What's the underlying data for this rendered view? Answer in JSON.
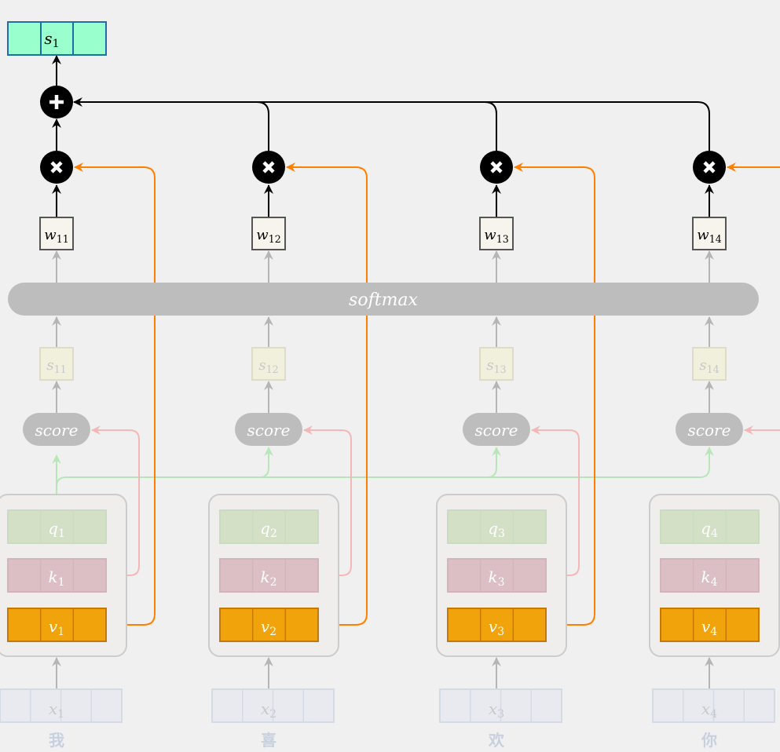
{
  "softmax_label": "softmax",
  "output": {
    "symbol": "s",
    "sub": "1"
  },
  "colors": {
    "background": "#f0f0f0",
    "output_fill": "#99ffcc",
    "output_stroke": "#1e6fa8",
    "value_fill": "#f0a30a",
    "value_stroke": "#c77800",
    "value_line": "#ff8000",
    "query_fill": "#d4e0c6",
    "key_fill": "#dcbfc5",
    "key_line": "#f2b8b8",
    "query_line": "#b8e6b8",
    "softmax_fill": "#bdbdbd",
    "input_fill": "#e8eaef"
  },
  "columns": [
    {
      "char": "我",
      "x": "x",
      "x_sub": "1",
      "q": "q",
      "q_sub": "1",
      "k": "k",
      "k_sub": "1",
      "v": "v",
      "v_sub": "1",
      "score": "score",
      "s": "s",
      "s_sub": "11",
      "w": "w",
      "w_sub": "11"
    },
    {
      "char": "喜",
      "x": "x",
      "x_sub": "2",
      "q": "q",
      "q_sub": "2",
      "k": "k",
      "k_sub": "2",
      "v": "v",
      "v_sub": "2",
      "score": "score",
      "s": "s",
      "s_sub": "12",
      "w": "w",
      "w_sub": "12"
    },
    {
      "char": "欢",
      "x": "x",
      "x_sub": "3",
      "q": "q",
      "q_sub": "3",
      "k": "k",
      "k_sub": "3",
      "v": "v",
      "v_sub": "3",
      "score": "score",
      "s": "s",
      "s_sub": "13",
      "w": "w",
      "w_sub": "13"
    },
    {
      "char": "你",
      "x": "x",
      "x_sub": "4",
      "q": "q",
      "q_sub": "4",
      "k": "k",
      "k_sub": "4",
      "v": "v",
      "v_sub": "4",
      "score": "score",
      "s": "s",
      "s_sub": "14",
      "w": "w",
      "w_sub": "14"
    }
  ]
}
